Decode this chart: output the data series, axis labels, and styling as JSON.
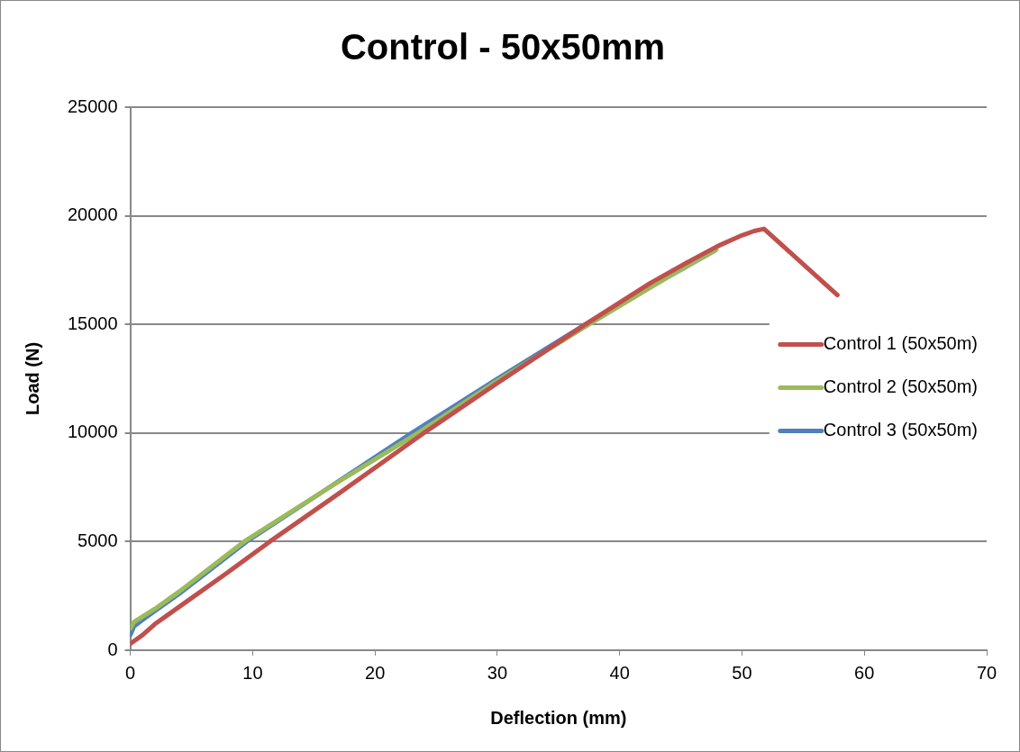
{
  "chart_data": {
    "type": "line",
    "title": "Control - 50x50mm",
    "xlabel": "Deflection (mm)",
    "ylabel": "Load (N)",
    "xlim": [
      0,
      70
    ],
    "xticks": [
      0,
      10,
      20,
      30,
      40,
      50,
      60,
      70
    ],
    "ylim": [
      0,
      25000
    ],
    "yticks": [
      0,
      5000,
      10000,
      15000,
      20000,
      25000
    ],
    "grid": "y",
    "legend": "right",
    "marker": "none",
    "line_style": "solid",
    "series": [
      {
        "name": "Control 1 (50x50m)",
        "color": "#c0504d",
        "x": [
          0,
          1,
          2,
          3,
          5,
          8,
          11.4,
          17,
          24,
          30,
          37.2,
          42.5,
          46,
          48,
          50,
          51,
          51.8,
          57.8
        ],
        "values": [
          300,
          700,
          1200,
          1600,
          2400,
          3600,
          5000,
          7200,
          10000,
          12300,
          15000,
          16900,
          18000,
          18600,
          19100,
          19300,
          19400,
          16350
        ]
      },
      {
        "name": "Control 2 (50x50m)",
        "color": "#9bbb59",
        "x": [
          0,
          0.3,
          1,
          2,
          4,
          9.3,
          16,
          23.5,
          30,
          37.5,
          44,
          47.9
        ],
        "values": [
          1000,
          1300,
          1550,
          1900,
          2700,
          5000,
          7400,
          10000,
          12400,
          15000,
          17200,
          18450
        ]
      },
      {
        "name": "Control 3 (50x50m)",
        "color": "#4f81bd",
        "x": [
          0,
          0.3,
          1,
          2,
          4,
          9.5,
          16,
          23,
          30,
          37.2,
          44,
          47.8
        ],
        "values": [
          700,
          1100,
          1400,
          1800,
          2600,
          5000,
          7400,
          10000,
          12500,
          15000,
          17200,
          18400
        ]
      }
    ]
  }
}
